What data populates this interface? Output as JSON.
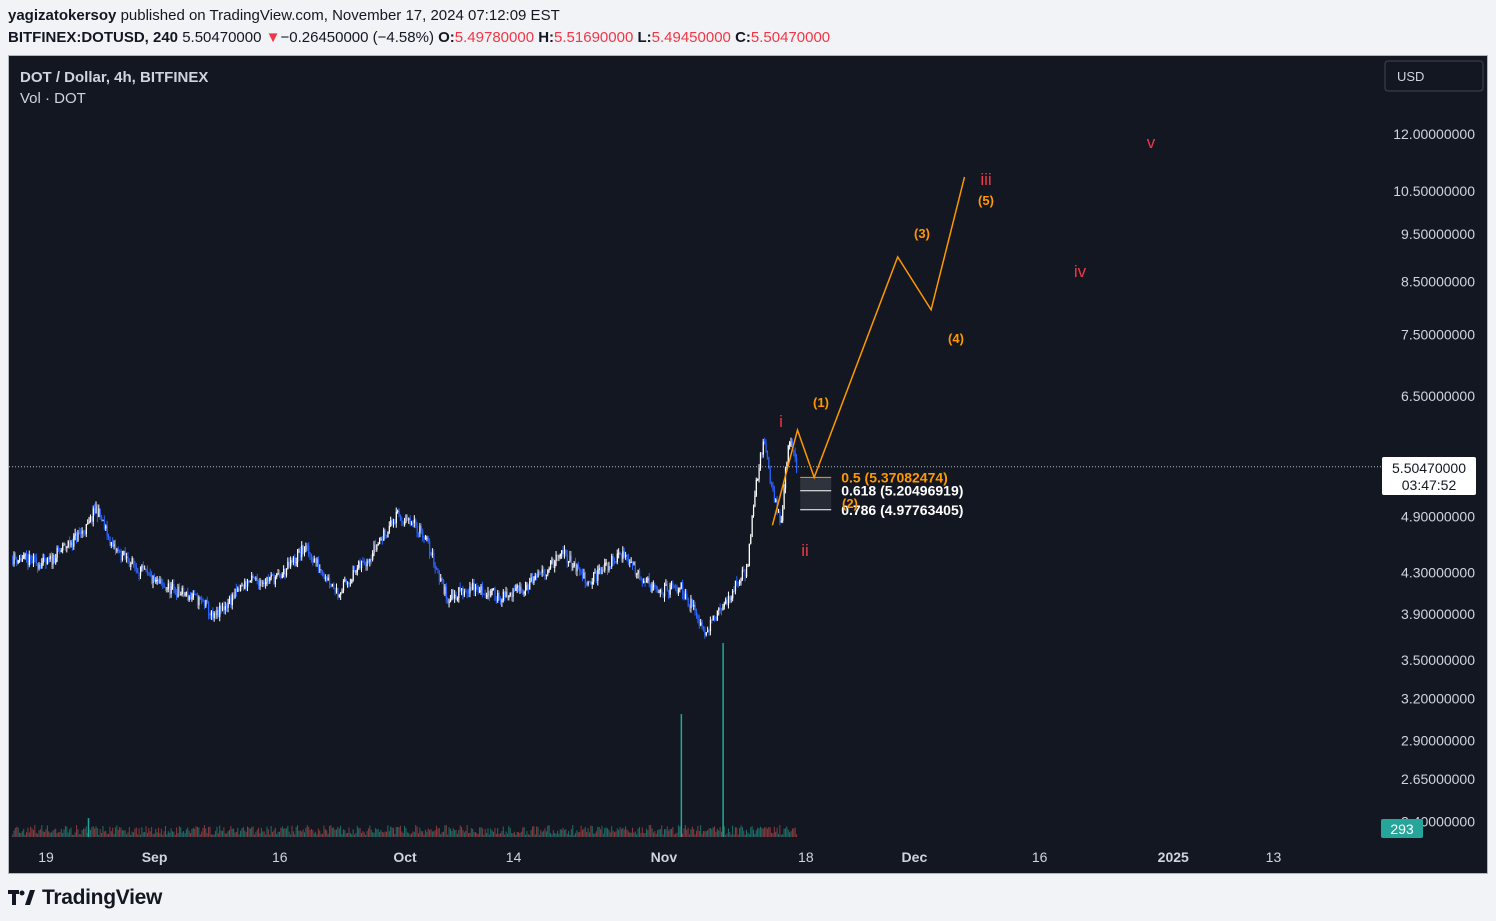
{
  "header": {
    "author": "yagizatokersoy",
    "published_text": "published on TradingView.com, November 17, 2024 07:12:09 EST",
    "symbol": "BITFINEX:DOTUSD, 240",
    "last": "5.50470000",
    "arrow": "▼",
    "change": "−0.26450000 (−4.58%)",
    "o_label": "O:",
    "o": "5.49780000",
    "h_label": "H:",
    "h": "5.51690000",
    "l_label": "L:",
    "l": "5.49450000",
    "c_label": "C:",
    "c": "5.50470000"
  },
  "chart": {
    "title": "DOT / Dollar, 4h, BITFINEX",
    "volume_label": "Vol · DOT",
    "currency_button": "USD",
    "price_tag": "5.50470000",
    "countdown": "03:47:52",
    "volume_tag": "293",
    "fib_levels": [
      {
        "label": "0.5 (5.37082474)",
        "value": 5.37082474,
        "color": "#ff9800"
      },
      {
        "label": "0.618 (5.20496919)",
        "value": 5.20496919,
        "color": "#ffffff"
      },
      {
        "label": "0.786 (4.97763405)",
        "value": 4.97763405,
        "color": "#ffffff"
      }
    ],
    "wave_labels_red": [
      "i",
      "ii",
      "iii",
      "iv",
      "v"
    ],
    "wave_labels_orange": [
      "(1)",
      "(2)",
      "(3)",
      "(4)",
      "(5)"
    ]
  },
  "chart_data": {
    "type": "candlestick",
    "title": "DOT / Dollar, 4h, BITFINEX",
    "y_scale": "log",
    "ylim": [
      2.3,
      13.5
    ],
    "y_ticks": [
      12.0,
      10.5,
      9.5,
      8.5,
      7.5,
      6.5,
      4.9,
      4.3,
      3.9,
      3.5,
      3.2,
      2.9,
      2.65,
      2.4
    ],
    "y_tick_labels": [
      "12.00000000",
      "10.50000000",
      "9.50000000",
      "8.50000000",
      "7.50000000",
      "6.50000000",
      "4.90000000",
      "4.30000000",
      "3.90000000",
      "3.50000000",
      "3.20000000",
      "2.90000000",
      "2.65000000",
      "2.40000000"
    ],
    "x_tick_labels": [
      "19",
      "Sep",
      "16",
      "Oct",
      "14",
      "Nov",
      "18",
      "Dec",
      "16",
      "2025",
      "13"
    ],
    "x_ticks_bold": [
      "Sep",
      "Oct",
      "Nov",
      "Dec",
      "2025"
    ],
    "price_path": [
      {
        "date": "2024-08-15",
        "price": 4.45
      },
      {
        "date": "2024-08-19",
        "price": 4.38
      },
      {
        "date": "2024-08-24",
        "price": 4.78
      },
      {
        "date": "2024-08-25",
        "price": 5.0
      },
      {
        "date": "2024-08-27",
        "price": 4.55
      },
      {
        "date": "2024-09-01",
        "price": 4.2
      },
      {
        "date": "2024-09-07",
        "price": 4.0
      },
      {
        "date": "2024-09-08",
        "price": 3.85
      },
      {
        "date": "2024-09-12",
        "price": 4.2
      },
      {
        "date": "2024-09-16",
        "price": 4.25
      },
      {
        "date": "2024-09-19",
        "price": 4.55
      },
      {
        "date": "2024-09-23",
        "price": 4.1
      },
      {
        "date": "2024-09-27",
        "price": 4.5
      },
      {
        "date": "2024-09-30",
        "price": 4.9
      },
      {
        "date": "2024-10-03",
        "price": 4.75
      },
      {
        "date": "2024-10-06",
        "price": 4.05
      },
      {
        "date": "2024-10-09",
        "price": 4.15
      },
      {
        "date": "2024-10-13",
        "price": 4.05
      },
      {
        "date": "2024-10-17",
        "price": 4.25
      },
      {
        "date": "2024-10-20",
        "price": 4.5
      },
      {
        "date": "2024-10-23",
        "price": 4.2
      },
      {
        "date": "2024-10-27",
        "price": 4.5
      },
      {
        "date": "2024-10-31",
        "price": 4.1
      },
      {
        "date": "2024-11-03",
        "price": 4.15
      },
      {
        "date": "2024-11-06",
        "price": 3.75
      },
      {
        "date": "2024-11-08",
        "price": 3.95
      },
      {
        "date": "2024-11-11",
        "price": 4.35
      },
      {
        "date": "2024-11-12",
        "price": 5.3
      },
      {
        "date": "2024-11-13",
        "price": 5.85
      },
      {
        "date": "2024-11-14",
        "price": 5.2
      },
      {
        "date": "2024-11-15",
        "price": 4.8
      },
      {
        "date": "2024-11-16",
        "price": 5.9
      },
      {
        "date": "2024-11-17",
        "price": 5.5
      }
    ],
    "volume_spikes": [
      {
        "date": "2024-08-24",
        "value": 293
      },
      {
        "date": "2024-11-03",
        "value": 1900
      },
      {
        "date": "2024-11-08",
        "value": 3000
      }
    ],
    "projection": [
      {
        "date": "2024-11-14",
        "price": 4.8
      },
      {
        "date": "2024-11-17",
        "price": 6.0
      },
      {
        "date": "2024-11-19",
        "price": 5.37
      },
      {
        "date": "2024-11-29",
        "price": 9.0
      },
      {
        "date": "2024-12-03",
        "price": 7.95
      },
      {
        "date": "2024-12-07",
        "price": 10.85
      }
    ]
  }
}
